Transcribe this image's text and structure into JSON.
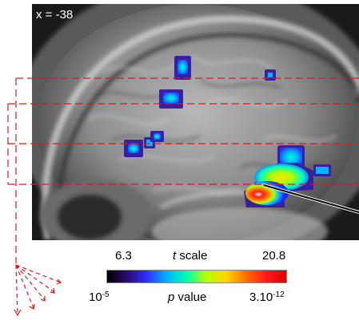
{
  "slice": {
    "label": "x = -38"
  },
  "t_scale": {
    "min": "6.3",
    "label_italic": "t",
    "label_rest": " scale",
    "max": "20.8"
  },
  "p_value": {
    "min_base": "10",
    "min_exp": "-5",
    "label_italic": "p",
    "label_rest": " value",
    "max_base": "3.10",
    "max_exp": "-12"
  },
  "colors": {
    "guide_lines": "#e8141c",
    "pointer_line": "#000000",
    "colorbar_stops": [
      "#000000",
      "#2a0a70",
      "#2f2fff",
      "#00b4ff",
      "#00ffb0",
      "#b8ff00",
      "#ffd500",
      "#ff6a00",
      "#ff1a1a",
      "#e00000"
    ]
  }
}
